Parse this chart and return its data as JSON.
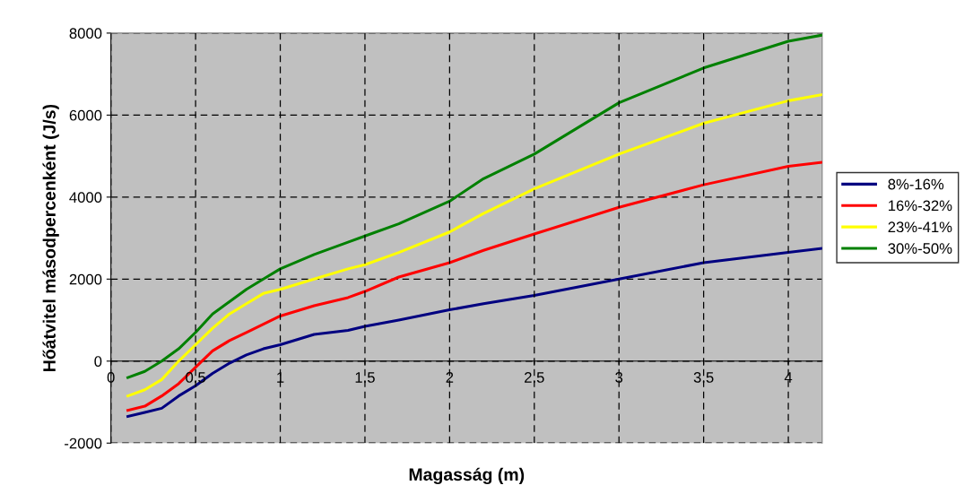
{
  "chart_data": {
    "type": "line",
    "xlabel": "Magasság (m)",
    "ylabel": "Hőátvitel másodpercenként (J/s)",
    "x": [
      0.1,
      0.2,
      0.3,
      0.4,
      0.5,
      0.6,
      0.7,
      0.8,
      0.9,
      1.0,
      1.2,
      1.4,
      1.5,
      1.7,
      2.0,
      2.2,
      2.5,
      3.0,
      3.5,
      4.0,
      4.2
    ],
    "series": [
      {
        "name": "8%-16%",
        "color": "#000080",
        "values": [
          -1350,
          -1250,
          -1150,
          -850,
          -600,
          -300,
          -50,
          150,
          300,
          400,
          650,
          750,
          850,
          1000,
          1250,
          1400,
          1600,
          2000,
          2400,
          2650,
          2750
        ]
      },
      {
        "name": "16%-32%",
        "color": "#ff0000",
        "values": [
          -1200,
          -1100,
          -850,
          -550,
          -150,
          250,
          500,
          700,
          900,
          1100,
          1350,
          1550,
          1700,
          2050,
          2400,
          2700,
          3100,
          3750,
          4300,
          4750,
          4850
        ]
      },
      {
        "name": "23%-41%",
        "color": "#ffff00",
        "values": [
          -850,
          -700,
          -450,
          0,
          400,
          800,
          1150,
          1400,
          1650,
          1750,
          2000,
          2250,
          2350,
          2650,
          3150,
          3600,
          4200,
          5050,
          5800,
          6350,
          6500
        ]
      },
      {
        "name": "30%-50%",
        "color": "#008000",
        "values": [
          -400,
          -250,
          0,
          300,
          700,
          1150,
          1450,
          1750,
          2000,
          2250,
          2600,
          2900,
          3050,
          3350,
          3900,
          4450,
          5050,
          6300,
          7150,
          7800,
          7950
        ]
      }
    ],
    "xlim": [
      0,
      4.2
    ],
    "xticks": [
      0,
      0.5,
      1,
      1.5,
      2,
      2.5,
      3,
      3.5,
      4
    ],
    "ylim": [
      -2000,
      8000
    ],
    "yticks": [
      -2000,
      0,
      2000,
      4000,
      6000,
      8000
    ],
    "grid": true,
    "legend": "right",
    "marker": "none",
    "line_style": "solid"
  }
}
